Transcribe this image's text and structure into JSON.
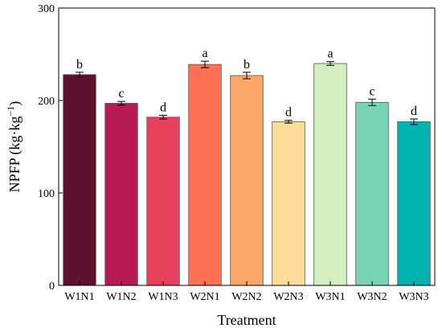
{
  "chart_data": {
    "type": "bar",
    "xlabel": "Treatment",
    "ylabel": {
      "prefix": "NPFP (kg·kg",
      "superscript": "−1",
      "suffix": ")"
    },
    "ylim": [
      0,
      300
    ],
    "yticks": [
      0,
      100,
      200,
      300
    ],
    "grid": false,
    "categories": [
      "W1N1",
      "W1N2",
      "W1N3",
      "W2N1",
      "W2N2",
      "W2N3",
      "W3N1",
      "W3N2",
      "W3N3"
    ],
    "values": [
      228,
      197,
      182,
      239,
      227,
      177,
      240,
      198,
      177
    ],
    "errors": [
      2.5,
      2,
      2,
      3.5,
      3.5,
      1.5,
      2,
      3.5,
      3
    ],
    "significance": [
      "b",
      "c",
      "d",
      "a",
      "b",
      "d",
      "a",
      "c",
      "d"
    ],
    "colors": [
      "#5e1230",
      "#b81a54",
      "#e7405b",
      "#fe7153",
      "#fca667",
      "#fcdc98",
      "#d3eebf",
      "#7ad3b6",
      "#00b2b2"
    ]
  }
}
